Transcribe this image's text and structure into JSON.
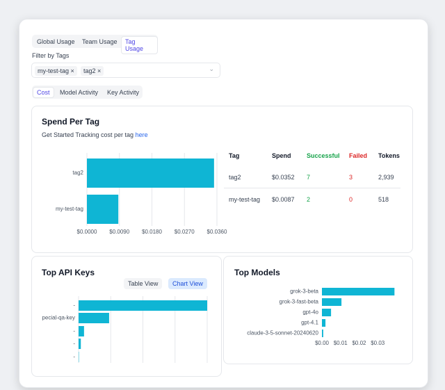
{
  "tabs": [
    "Global Usage",
    "Team Usage",
    "Tag Usage"
  ],
  "filter": {
    "label": "Filter by Tags",
    "chips": [
      "my-test-tag",
      "tag2"
    ]
  },
  "subtabs": [
    "Cost",
    "Model Activity",
    "Key Activity"
  ],
  "spend_intro": {
    "text": "Get Started Tracking cost per tag",
    "link": "here"
  },
  "table": {
    "headers": [
      "Tag",
      "Spend",
      "Successful",
      "Failed",
      "Tokens"
    ],
    "rows": [
      [
        "tag2",
        "$0.0352",
        "7",
        "3",
        "2,939"
      ],
      [
        "my-test-tag",
        "$0.0087",
        "2",
        "0",
        "518"
      ]
    ]
  },
  "key_buttons": [
    "Table View",
    "Chart View"
  ],
  "chart_data": [
    {
      "type": "bar",
      "orientation": "horizontal",
      "title": "Spend Per Tag",
      "color": "#0fb5d4",
      "categories": [
        "tag2",
        "my-test-tag"
      ],
      "values": [
        0.0352,
        0.0087
      ],
      "xlim": [
        0,
        0.036
      ],
      "xticks": [
        {
          "value": 0,
          "label": "$0.0000"
        },
        {
          "value": 0.009,
          "label": "$0.0090"
        },
        {
          "value": 0.018,
          "label": "$0.0180"
        },
        {
          "value": 0.027,
          "label": "$0.0270"
        },
        {
          "value": 0.036,
          "label": "$0.0360"
        }
      ],
      "grid": true
    },
    {
      "type": "bar",
      "orientation": "horizontal",
      "title": "Top API Keys",
      "color": "#0fb5d4",
      "categories": [
        "-",
        "special-qa-key",
        "-",
        "-",
        "-"
      ],
      "values": [
        0.04,
        0.0095,
        0.0017,
        0.0007,
        0.0001
      ],
      "xlim": [
        0,
        0.04
      ],
      "xticks": [
        0,
        0.01,
        0.02,
        0.03,
        0.04
      ],
      "tick_labels": false,
      "grid": true
    },
    {
      "type": "bar",
      "orientation": "horizontal",
      "title": "Top Models",
      "color": "#0fb5d4",
      "categories": [
        "grok-3-beta",
        "grok-3-fast-beta",
        "gpt-4o",
        "gpt-4.1",
        "claude-3-5-sonnet-20240620"
      ],
      "values": [
        0.039,
        0.0105,
        0.0049,
        0.0019,
        0.0007
      ],
      "xlim": [
        0,
        0.04
      ],
      "xticks": [
        {
          "value": 0,
          "label": "$0.00"
        },
        {
          "value": 0.01,
          "label": "$0.01"
        },
        {
          "value": 0.02,
          "label": "$0.02"
        },
        {
          "value": 0.03,
          "label": "$0.03"
        }
      ],
      "grid": false
    }
  ]
}
